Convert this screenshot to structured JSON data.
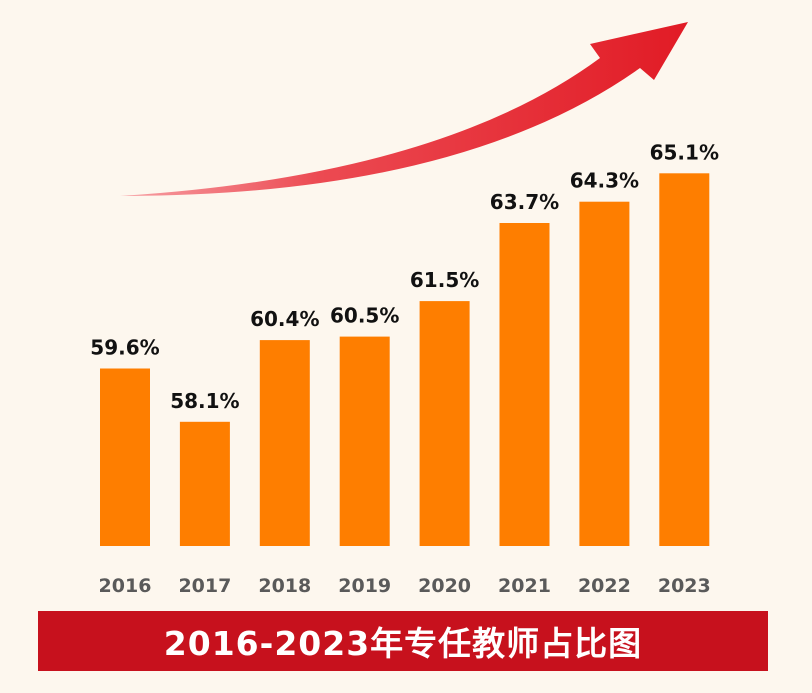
{
  "title": "2016-2023年专任教师占比图",
  "colors": {
    "background": "#fdf7ee",
    "bar": "#fe7e00",
    "arrow": "#e8202a",
    "title_bar": "#c7111d",
    "title_text": "#ffffff",
    "value_label": "#111111",
    "tick_label": "#5a5a5a"
  },
  "chart_data": {
    "type": "bar",
    "categories": [
      "2016",
      "2017",
      "2018",
      "2019",
      "2020",
      "2021",
      "2022",
      "2023"
    ],
    "values": [
      59.6,
      58.1,
      60.4,
      60.5,
      61.5,
      63.7,
      64.3,
      65.1
    ],
    "data_labels": [
      "59.6%",
      "58.1%",
      "60.4%",
      "60.5%",
      "61.5%",
      "63.7%",
      "64.3%",
      "65.1%"
    ],
    "unit": "%",
    "title": "2016-2023年专任教师占比图",
    "xlabel": "",
    "ylabel": "",
    "ylim": [
      54.6,
      65.7
    ],
    "grid": false,
    "legend": "none",
    "annotation": "upward trend arrow"
  }
}
